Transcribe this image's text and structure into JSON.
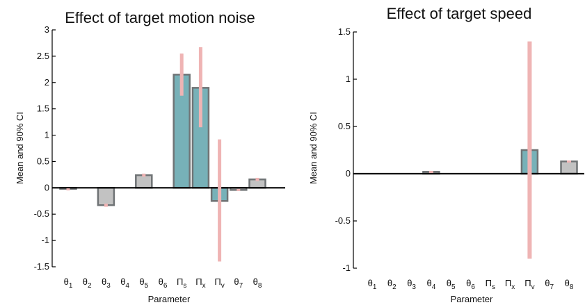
{
  "chart_data": [
    {
      "type": "bar",
      "title": "Effect of target motion noise",
      "xlabel": "Parameter",
      "ylabel": "Mean and 90% CI",
      "ylim": [
        -1.5,
        3
      ],
      "yticks": [
        "-1.5",
        "-1",
        "-0.5",
        "0",
        "0.5",
        "1",
        "1.5",
        "2",
        "2.5",
        "3"
      ],
      "categories": [
        {
          "base": "θ",
          "sub": "1"
        },
        {
          "base": "θ",
          "sub": "2"
        },
        {
          "base": "θ",
          "sub": "3"
        },
        {
          "base": "θ",
          "sub": "4"
        },
        {
          "base": "θ",
          "sub": "5"
        },
        {
          "base": "θ",
          "sub": "6"
        },
        {
          "base": "Π",
          "sub": "s"
        },
        {
          "base": "Π",
          "sub": "x"
        },
        {
          "base": "Π",
          "sub": "v"
        },
        {
          "base": "θ",
          "sub": "7"
        },
        {
          "base": "θ",
          "sub": "8"
        }
      ],
      "values": [
        -0.02,
        0,
        -0.33,
        0,
        0.24,
        0,
        2.15,
        1.9,
        -0.25,
        -0.04,
        0.16
      ],
      "ci_low": [
        -0.04,
        0,
        -0.36,
        0,
        0.21,
        0,
        1.75,
        1.15,
        -1.4,
        -0.06,
        0.13
      ],
      "ci_high": [
        -0.01,
        0,
        -0.3,
        0,
        0.27,
        0,
        2.55,
        2.67,
        0.92,
        -0.02,
        0.19
      ],
      "highlighted": [
        false,
        false,
        false,
        false,
        false,
        false,
        true,
        true,
        true,
        false,
        false
      ],
      "grid": false,
      "colors": {
        "bar": "#c2c2c2",
        "highlight": "#77b1b8",
        "ci": "#efb4b4",
        "edge": "#6f7375"
      }
    },
    {
      "type": "bar",
      "title": "Effect of target speed",
      "xlabel": "Parameter",
      "ylabel": "Mean and 90% CI",
      "ylim": [
        -1,
        1.5
      ],
      "yticks": [
        "-1",
        "-0.5",
        "0",
        "0.5",
        "1",
        "1.5"
      ],
      "categories": [
        {
          "base": "θ",
          "sub": "1"
        },
        {
          "base": "θ",
          "sub": "2"
        },
        {
          "base": "θ",
          "sub": "3"
        },
        {
          "base": "θ",
          "sub": "4"
        },
        {
          "base": "θ",
          "sub": "5"
        },
        {
          "base": "θ",
          "sub": "6"
        },
        {
          "base": "Π",
          "sub": "s"
        },
        {
          "base": "Π",
          "sub": "x"
        },
        {
          "base": "Π",
          "sub": "v"
        },
        {
          "base": "θ",
          "sub": "7"
        },
        {
          "base": "θ",
          "sub": "8"
        }
      ],
      "values": [
        0,
        0,
        0,
        0.02,
        0,
        0,
        0,
        0,
        0.25,
        0,
        0.13
      ],
      "ci_low": [
        0,
        0,
        0,
        0.01,
        0,
        0,
        0,
        0,
        -0.9,
        0,
        0.12
      ],
      "ci_high": [
        0,
        0,
        0,
        0.03,
        0,
        0,
        0,
        0,
        1.4,
        0,
        0.14
      ],
      "highlighted": [
        false,
        false,
        false,
        false,
        false,
        false,
        false,
        false,
        true,
        false,
        false
      ],
      "grid": false,
      "colors": {
        "bar": "#c2c2c2",
        "highlight": "#77b1b8",
        "ci": "#efb4b4",
        "edge": "#6f7375"
      }
    }
  ]
}
